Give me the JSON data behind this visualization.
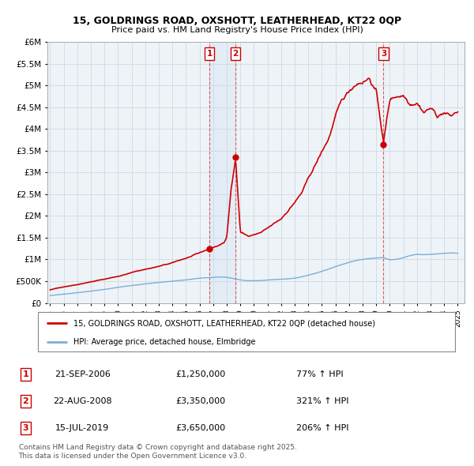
{
  "title": "15, GOLDRINGS ROAD, OXSHOTT, LEATHERHEAD, KT22 0QP",
  "subtitle": "Price paid vs. HM Land Registry's House Price Index (HPI)",
  "ytick_values": [
    0,
    500000,
    1000000,
    1500000,
    2000000,
    2500000,
    3000000,
    3500000,
    4000000,
    4500000,
    5000000,
    5500000,
    6000000
  ],
  "ylim": [
    0,
    6000000
  ],
  "price_paid_color": "#cc0000",
  "hpi_color": "#7bafd4",
  "background_color": "#ffffff",
  "grid_color": "#d0d8e4",
  "sale_points": [
    {
      "label": "1",
      "date_num": 2006.73,
      "price": 1250000
    },
    {
      "label": "2",
      "date_num": 2008.65,
      "price": 3350000
    },
    {
      "label": "3",
      "date_num": 2019.54,
      "price": 3650000
    }
  ],
  "legend_price_label": "15, GOLDRINGS ROAD, OXSHOTT, LEATHERHEAD, KT22 0QP (detached house)",
  "legend_hpi_label": "HPI: Average price, detached house, Elmbridge",
  "table_rows": [
    {
      "num": "1",
      "date": "21-SEP-2006",
      "price": "£1,250,000",
      "change": "77% ↑ HPI"
    },
    {
      "num": "2",
      "date": "22-AUG-2008",
      "price": "£3,350,000",
      "change": "321% ↑ HPI"
    },
    {
      "num": "3",
      "date": "15-JUL-2019",
      "price": "£3,650,000",
      "change": "206% ↑ HPI"
    }
  ],
  "copyright_text": "Contains HM Land Registry data © Crown copyright and database right 2025.\nThis data is licensed under the Open Government Licence v3.0.",
  "price_anchors_t": [
    1995,
    1996,
    1997,
    1998,
    1999,
    2000,
    2001,
    2002,
    2003,
    2004,
    2005,
    2006,
    2006.73,
    2007.2,
    2007.8,
    2008.0,
    2008.3,
    2008.65,
    2008.9,
    2009.0,
    2009.3,
    2009.6,
    2010.0,
    2010.5,
    2011.0,
    2011.5,
    2012.0,
    2012.5,
    2013.0,
    2013.5,
    2014.0,
    2014.5,
    2015.0,
    2015.5,
    2016.0,
    2016.5,
    2017.0,
    2017.5,
    2018.0,
    2018.5,
    2019.0,
    2019.54,
    2019.8,
    2020.0,
    2020.5,
    2021.0,
    2021.5,
    2022.0,
    2022.5,
    2023.0,
    2023.5,
    2024.0,
    2024.5,
    2025.0
  ],
  "price_anchors_v": [
    300000,
    370000,
    430000,
    500000,
    560000,
    630000,
    720000,
    800000,
    870000,
    940000,
    1050000,
    1150000,
    1250000,
    1300000,
    1380000,
    1500000,
    2600000,
    3350000,
    2200000,
    1650000,
    1600000,
    1550000,
    1580000,
    1620000,
    1700000,
    1800000,
    1900000,
    2100000,
    2300000,
    2500000,
    2800000,
    3100000,
    3400000,
    3700000,
    4200000,
    4500000,
    4700000,
    4900000,
    5000000,
    5100000,
    4800000,
    3650000,
    4200000,
    4600000,
    4700000,
    4750000,
    4600000,
    4700000,
    4500000,
    4600000,
    4400000,
    4500000,
    4400000,
    4500000
  ],
  "hpi_anchors_t": [
    1995,
    1996,
    1997,
    1998,
    1999,
    2000,
    2001,
    2002,
    2003,
    2004,
    2005,
    2006,
    2007,
    2007.5,
    2008.0,
    2008.5,
    2009.0,
    2009.5,
    2010.0,
    2010.5,
    2011.0,
    2011.5,
    2012.0,
    2012.5,
    2013.0,
    2013.5,
    2014.0,
    2014.5,
    2015.0,
    2015.5,
    2016.0,
    2016.5,
    2017.0,
    2017.5,
    2018.0,
    2018.5,
    2019.0,
    2019.5,
    2020.0,
    2020.5,
    2021.0,
    2021.5,
    2022.0,
    2022.5,
    2023.0,
    2023.5,
    2024.0,
    2024.5,
    2025.0
  ],
  "hpi_anchors_v": [
    170000,
    200000,
    235000,
    270000,
    310000,
    360000,
    400000,
    440000,
    470000,
    500000,
    530000,
    570000,
    590000,
    600000,
    590000,
    560000,
    530000,
    510000,
    510000,
    515000,
    525000,
    540000,
    545000,
    555000,
    570000,
    600000,
    640000,
    680000,
    730000,
    780000,
    840000,
    890000,
    940000,
    980000,
    1010000,
    1030000,
    1040000,
    1050000,
    1000000,
    1010000,
    1050000,
    1100000,
    1130000,
    1120000,
    1130000,
    1140000,
    1150000,
    1160000,
    1150000
  ]
}
